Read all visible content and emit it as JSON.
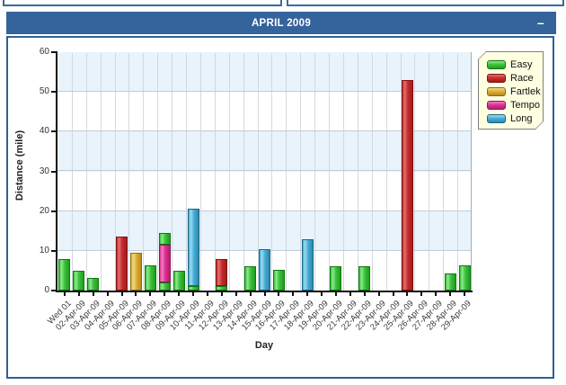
{
  "header": {
    "title": "APRIL 2009",
    "minimize_label": "–"
  },
  "chart_data": {
    "type": "bar",
    "stacked": true,
    "title": "APRIL 2009",
    "xlabel": "Day",
    "ylabel": "Distance (mile)",
    "ylim": [
      0,
      60
    ],
    "ytick_step": 10,
    "ytick_labels": [
      "0",
      "10",
      "20",
      "30",
      "40",
      "50",
      "60"
    ],
    "grid": true,
    "legend_position": "top-right",
    "categories": [
      "Wed 01",
      "02-Apr-09",
      "03-Apr-09",
      "04-Apr-09",
      "05-Apr-09",
      "06-Apr-09",
      "07-Apr-09",
      "08-Apr-09",
      "09-Apr-09",
      "10-Apr-09",
      "11-Apr-09",
      "12-Apr-09",
      "13-Apr-09",
      "14-Apr-09",
      "15-Apr-09",
      "16-Apr-09",
      "17-Apr-09",
      "18-Apr-09",
      "19-Apr-09",
      "20-Apr-09",
      "21-Apr-09",
      "22-Apr-09",
      "23-Apr-09",
      "24-Apr-09",
      "25-Apr-09",
      "26-Apr-09",
      "27-Apr-09",
      "28-Apr-09",
      "29-Apr-09"
    ],
    "series": [
      {
        "name": "Easy",
        "color": "#3BBF3B",
        "light": "#8CE98C",
        "dark": "#1F9E1F",
        "border": "#0E7A0E"
      },
      {
        "name": "Race",
        "color": "#C42B2B",
        "light": "#E26F6F",
        "dark": "#A31C1C",
        "border": "#801212"
      },
      {
        "name": "Fartlek",
        "color": "#D8AC35",
        "light": "#F0D98A",
        "dark": "#B9891C",
        "border": "#8F6A12"
      },
      {
        "name": "Tempo",
        "color": "#DB2F90",
        "light": "#F27DC0",
        "dark": "#B51E73",
        "border": "#8C1557"
      },
      {
        "name": "Long",
        "color": "#45ABD3",
        "light": "#9BDCF0",
        "dark": "#2E87AD",
        "border": "#1B6586"
      }
    ],
    "bars": [
      {
        "category": "Wed 01",
        "segments": [
          {
            "series": "Easy",
            "value": 8
          }
        ]
      },
      {
        "category": "02-Apr-09",
        "segments": [
          {
            "series": "Easy",
            "value": 5
          }
        ]
      },
      {
        "category": "03-Apr-09",
        "segments": [
          {
            "series": "Easy",
            "value": 3.2
          }
        ]
      },
      {
        "category": "05-Apr-09",
        "segments": [
          {
            "series": "Race",
            "value": 13.6
          }
        ]
      },
      {
        "category": "06-Apr-09",
        "segments": [
          {
            "series": "Fartlek",
            "value": 9.5
          }
        ]
      },
      {
        "category": "07-Apr-09",
        "segments": [
          {
            "series": "Easy",
            "value": 6.3
          }
        ]
      },
      {
        "category": "08-Apr-09",
        "segments": [
          {
            "series": "Easy",
            "value": 2
          },
          {
            "series": "Tempo",
            "value": 9.5
          },
          {
            "series": "Easy",
            "value": 3
          }
        ]
      },
      {
        "category": "09-Apr-09",
        "segments": [
          {
            "series": "Easy",
            "value": 5
          }
        ]
      },
      {
        "category": "10-Apr-09",
        "segments": [
          {
            "series": "Easy",
            "value": 1.2
          },
          {
            "series": "Long",
            "value": 19.5
          }
        ]
      },
      {
        "category": "12-Apr-09",
        "segments": [
          {
            "series": "Easy",
            "value": 1.1
          },
          {
            "series": "Race",
            "value": 6.9
          }
        ]
      },
      {
        "category": "14-Apr-09",
        "segments": [
          {
            "series": "Easy",
            "value": 6
          }
        ]
      },
      {
        "category": "15-Apr-09",
        "segments": [
          {
            "series": "Long",
            "value": 10.5
          }
        ]
      },
      {
        "category": "16-Apr-09",
        "segments": [
          {
            "series": "Easy",
            "value": 5.2
          }
        ]
      },
      {
        "category": "18-Apr-09",
        "segments": [
          {
            "series": "Long",
            "value": 13
          }
        ]
      },
      {
        "category": "20-Apr-09",
        "segments": [
          {
            "series": "Easy",
            "value": 6
          }
        ]
      },
      {
        "category": "22-Apr-09",
        "segments": [
          {
            "series": "Easy",
            "value": 6
          }
        ]
      },
      {
        "category": "25-Apr-09",
        "segments": [
          {
            "series": "Race",
            "value": 53
          }
        ]
      },
      {
        "category": "28-Apr-09",
        "segments": [
          {
            "series": "Easy",
            "value": 4.3
          }
        ]
      },
      {
        "category": "29-Apr-09",
        "segments": [
          {
            "series": "Easy",
            "value": 6.3
          }
        ]
      }
    ],
    "band_color": "#E8F3FB"
  }
}
